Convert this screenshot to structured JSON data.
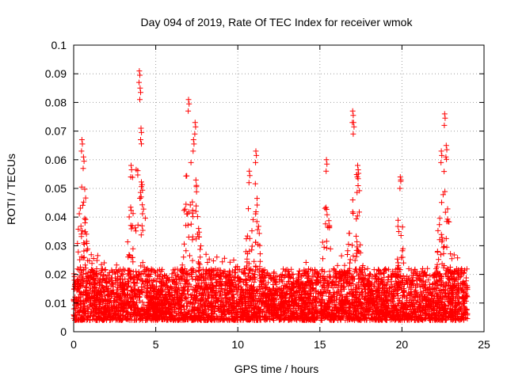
{
  "chart_data": {
    "type": "scatter",
    "title": "Day 094 of 2019, Rate Of TEC Index for receiver wmok",
    "xlabel": "GPS time / hours",
    "ylabel": "ROTI / TECUs",
    "xlim": [
      0,
      25
    ],
    "ylim": [
      0,
      0.1
    ],
    "x_ticks": [
      0,
      5,
      10,
      15,
      20,
      25
    ],
    "x_tick_labels": [
      "0",
      "5",
      "10",
      "15",
      "20",
      "25"
    ],
    "y_ticks": [
      0,
      0.01,
      0.02,
      0.03,
      0.04,
      0.05,
      0.06,
      0.07,
      0.08,
      0.09,
      0.1
    ],
    "y_tick_labels": [
      "0",
      "0.01",
      "0.02",
      "0.03",
      "0.04",
      "0.05",
      "0.06",
      "0.07",
      "0.08",
      "0.09",
      "0.1"
    ],
    "grid": true,
    "marker": "plus",
    "color": "#ff0000",
    "x_data_range": [
      0,
      24
    ],
    "peaks": [
      {
        "x": 0.5,
        "y": 0.067
      },
      {
        "x": 0.6,
        "y": 0.061
      },
      {
        "x": 3.5,
        "y": 0.058
      },
      {
        "x": 4.0,
        "y": 0.091
      },
      {
        "x": 4.05,
        "y": 0.085
      },
      {
        "x": 4.1,
        "y": 0.071
      },
      {
        "x": 7.0,
        "y": 0.081
      },
      {
        "x": 7.4,
        "y": 0.073
      },
      {
        "x": 7.3,
        "y": 0.067
      },
      {
        "x": 10.7,
        "y": 0.056
      },
      {
        "x": 11.1,
        "y": 0.063
      },
      {
        "x": 15.4,
        "y": 0.06
      },
      {
        "x": 17.0,
        "y": 0.077
      },
      {
        "x": 17.05,
        "y": 0.073
      },
      {
        "x": 17.3,
        "y": 0.058
      },
      {
        "x": 19.9,
        "y": 0.054
      },
      {
        "x": 22.4,
        "y": 0.063
      },
      {
        "x": 22.6,
        "y": 0.076
      },
      {
        "x": 22.7,
        "y": 0.065
      }
    ]
  }
}
